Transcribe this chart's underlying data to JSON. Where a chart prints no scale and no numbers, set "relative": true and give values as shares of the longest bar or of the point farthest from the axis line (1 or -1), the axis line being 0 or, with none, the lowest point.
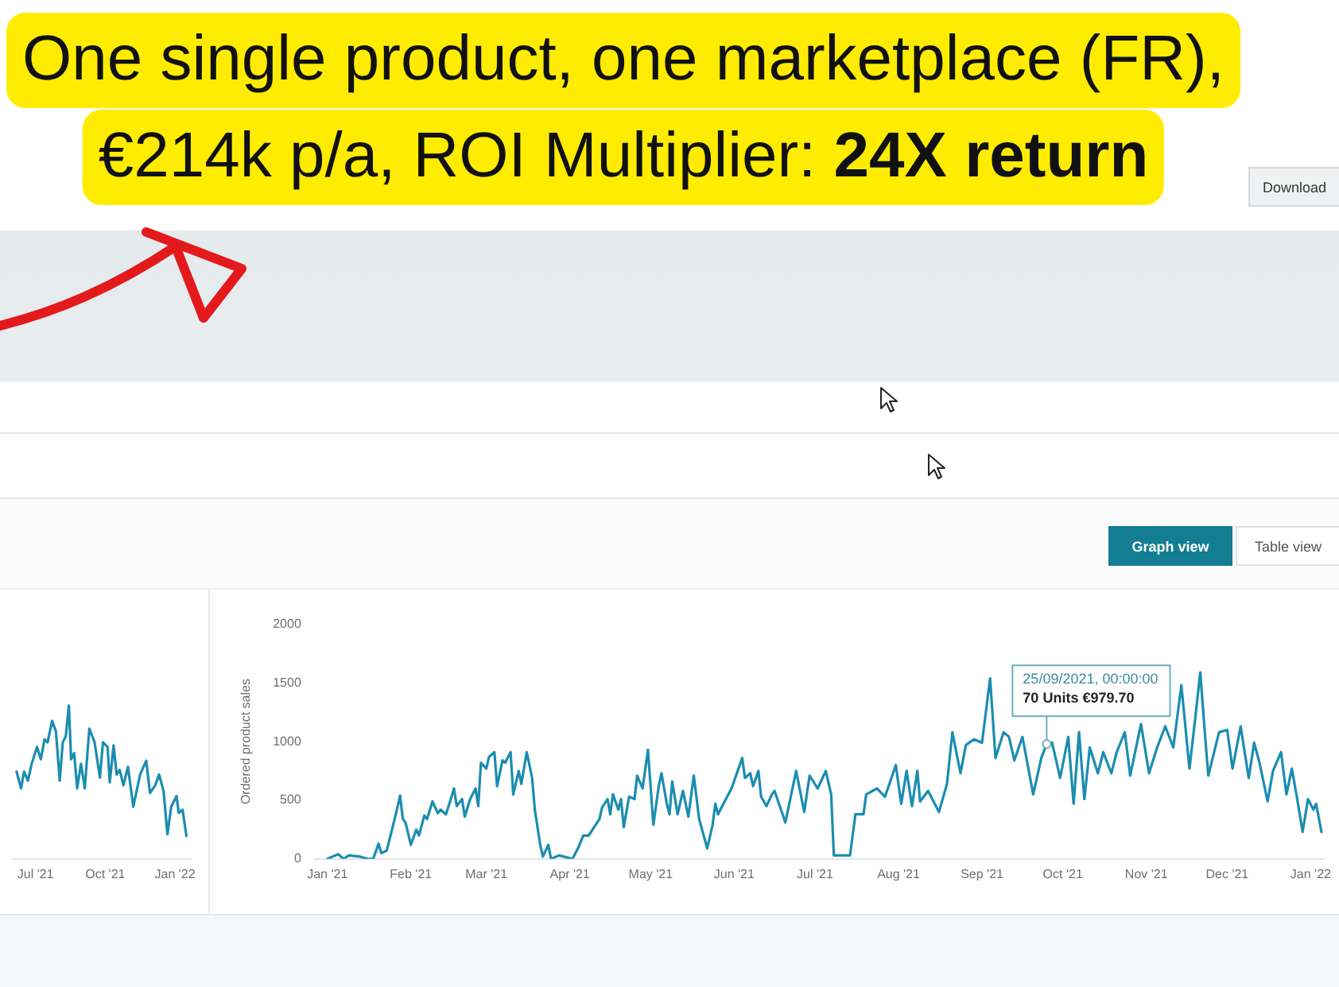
{
  "chart_data": [
    {
      "type": "line",
      "relative": true,
      "color": "#1b8db0",
      "marker": "none",
      "legend": false,
      "grid": false,
      "x": [
        "2021-06-06",
        "2021-06-12",
        "2021-06-16",
        "2021-06-21",
        "2021-06-26",
        "2021-07-03",
        "2021-07-08",
        "2021-07-13",
        "2021-07-17",
        "2021-07-23",
        "2021-07-28",
        "2021-08-02",
        "2021-08-06",
        "2021-08-10",
        "2021-08-14",
        "2021-08-17",
        "2021-08-21",
        "2021-08-25",
        "2021-08-30",
        "2021-09-04",
        "2021-09-10",
        "2021-09-17",
        "2021-09-24",
        "2021-09-28",
        "2021-10-04",
        "2021-10-07",
        "2021-10-12",
        "2021-10-16",
        "2021-10-20",
        "2021-10-25",
        "2021-10-31",
        "2021-11-07",
        "2021-11-16",
        "2021-11-24",
        "2021-11-29",
        "2021-12-06",
        "2021-12-11",
        "2021-12-17",
        "2021-12-22",
        "2021-12-27",
        "2022-01-03",
        "2022-01-06",
        "2022-01-11",
        "2022-01-16"
      ],
      "values": [
        0.57,
        0.46,
        0.57,
        0.51,
        0.62,
        0.73,
        0.65,
        0.78,
        0.76,
        0.9,
        0.83,
        0.51,
        0.76,
        0.8,
        1,
        0.65,
        0.69,
        0.46,
        0.62,
        0.46,
        0.85,
        0.76,
        0.53,
        0.76,
        0.73,
        0.5,
        0.74,
        0.55,
        0.58,
        0.48,
        0.6,
        0.34,
        0.55,
        0.64,
        0.43,
        0.48,
        0.55,
        0.44,
        0.16,
        0.34,
        0.41,
        0.3,
        0.32,
        0.15
      ],
      "xlim": [
        "2021-06-01",
        "2022-01-22"
      ],
      "xticks": [
        {
          "value": "2021-07",
          "label": "Jul '21"
        },
        {
          "value": "2021-10",
          "label": "Oct '21"
        },
        {
          "value": "2022-01",
          "label": "Jan '22"
        }
      ]
    },
    {
      "type": "line",
      "title": "One single product, one marketplace (FR), €214k p/a, ROI Multiplier: 24X return",
      "ylabel": "Ordered product sales",
      "color": "#1b8db0",
      "marker": "none",
      "legend": false,
      "grid": false,
      "x": [
        "2021-01-01",
        "2021-01-05",
        "2021-01-07",
        "2021-01-09",
        "2021-01-13",
        "2021-01-16",
        "2021-01-18",
        "2021-01-20",
        "2021-01-21",
        "2021-01-23",
        "2021-01-25",
        "2021-01-27",
        "2021-01-28",
        "2021-01-29",
        "2021-01-30",
        "2021-02-01",
        "2021-02-03",
        "2021-02-04",
        "2021-02-06",
        "2021-02-07",
        "2021-02-09",
        "2021-02-11",
        "2021-02-12",
        "2021-02-14",
        "2021-02-15",
        "2021-02-17",
        "2021-02-18",
        "2021-02-20",
        "2021-02-21",
        "2021-02-23",
        "2021-02-25",
        "2021-02-26",
        "2021-02-27",
        "2021-03-01",
        "2021-03-02",
        "2021-03-04",
        "2021-03-05",
        "2021-03-07",
        "2021-03-08",
        "2021-03-10",
        "2021-03-11",
        "2021-03-13",
        "2021-03-14",
        "2021-03-16",
        "2021-03-18",
        "2021-03-19",
        "2021-03-21",
        "2021-03-22",
        "2021-03-24",
        "2021-03-25",
        "2021-03-28",
        "2021-04-02",
        "2021-04-04",
        "2021-04-06",
        "2021-04-08",
        "2021-04-10",
        "2021-04-12",
        "2021-04-13",
        "2021-04-15",
        "2021-04-16",
        "2021-04-17",
        "2021-04-19",
        "2021-04-20",
        "2021-04-21",
        "2021-04-23",
        "2021-04-25",
        "2021-04-26",
        "2021-04-28",
        "2021-04-30",
        "2021-05-02",
        "2021-05-04",
        "2021-05-05",
        "2021-05-07",
        "2021-05-08",
        "2021-05-09",
        "2021-05-11",
        "2021-05-13",
        "2021-05-15",
        "2021-05-17",
        "2021-05-19",
        "2021-05-22",
        "2021-05-24",
        "2021-05-25",
        "2021-05-26",
        "2021-05-28",
        "2021-05-31",
        "2021-06-04",
        "2021-06-05",
        "2021-06-07",
        "2021-06-08",
        "2021-06-10",
        "2021-06-11",
        "2021-06-13",
        "2021-06-15",
        "2021-06-16",
        "2021-06-20",
        "2021-06-24",
        "2021-06-27",
        "2021-06-29",
        "2021-07-02",
        "2021-07-05",
        "2021-07-07",
        "2021-07-08",
        "2021-07-14",
        "2021-07-16",
        "2021-07-19",
        "2021-07-20",
        "2021-07-24",
        "2021-07-27",
        "2021-07-31",
        "2021-08-02",
        "2021-08-04",
        "2021-08-06",
        "2021-08-08",
        "2021-08-09",
        "2021-08-12",
        "2021-08-16",
        "2021-08-19",
        "2021-08-21",
        "2021-08-24",
        "2021-08-26",
        "2021-08-29",
        "2021-09-01",
        "2021-09-04",
        "2021-09-06",
        "2021-09-09",
        "2021-09-11",
        "2021-09-13",
        "2021-09-16",
        "2021-09-20",
        "2021-09-23",
        "2021-09-25",
        "2021-09-27",
        "2021-09-30",
        "2021-10-03",
        "2021-10-05",
        "2021-10-07",
        "2021-10-09",
        "2021-10-11",
        "2021-10-14",
        "2021-10-16",
        "2021-10-19",
        "2021-10-21",
        "2021-10-24",
        "2021-10-26",
        "2021-10-30",
        "2021-11-02",
        "2021-11-05",
        "2021-11-08",
        "2021-11-11",
        "2021-11-14",
        "2021-11-17",
        "2021-11-19",
        "2021-11-21",
        "2021-11-23",
        "2021-11-24",
        "2021-11-28",
        "2021-12-01",
        "2021-12-03",
        "2021-12-06",
        "2021-12-09",
        "2021-12-11",
        "2021-12-13",
        "2021-12-16",
        "2021-12-18",
        "2021-12-21",
        "2021-12-23",
        "2021-12-25",
        "2021-12-27",
        "2021-12-29",
        "2021-12-31",
        "2022-01-02",
        "2022-01-03",
        "2022-01-05"
      ],
      "values": [
        0,
        40,
        0,
        30,
        20,
        0,
        0,
        130,
        50,
        70,
        250,
        440,
        540,
        340,
        310,
        120,
        250,
        200,
        370,
        340,
        490,
        390,
        420,
        380,
        450,
        600,
        450,
        510,
        360,
        510,
        600,
        450,
        820,
        770,
        870,
        910,
        620,
        840,
        820,
        910,
        550,
        750,
        640,
        910,
        690,
        420,
        120,
        20,
        120,
        0,
        30,
        0,
        90,
        200,
        200,
        270,
        340,
        440,
        510,
        380,
        550,
        420,
        510,
        270,
        530,
        510,
        710,
        600,
        930,
        290,
        620,
        730,
        470,
        380,
        660,
        380,
        580,
        360,
        710,
        340,
        90,
        290,
        470,
        380,
        470,
        600,
        860,
        690,
        730,
        620,
        750,
        530,
        450,
        550,
        580,
        310,
        750,
        400,
        710,
        600,
        750,
        550,
        30,
        30,
        380,
        380,
        550,
        600,
        530,
        800,
        470,
        750,
        450,
        750,
        490,
        580,
        400,
        640,
        1080,
        730,
        970,
        1020,
        990,
        1540,
        860,
        1080,
        1040,
        840,
        1040,
        550,
        860,
        980,
        990,
        690,
        1040,
        470,
        1080,
        510,
        950,
        730,
        910,
        730,
        910,
        1080,
        710,
        1150,
        730,
        950,
        1130,
        950,
        1480,
        770,
        1170,
        1590,
        990,
        710,
        1080,
        1100,
        770,
        1130,
        690,
        990,
        820,
        490,
        750,
        910,
        550,
        770,
        510,
        230,
        510,
        420,
        470,
        230
      ],
      "xlim": [
        "2020-12-27",
        "2022-01-06"
      ],
      "xticks": [
        {
          "value": "2021-01",
          "label": "Jan '21"
        },
        {
          "value": "2021-02",
          "label": "Feb '21"
        },
        {
          "value": "2021-03",
          "label": "Mar '21"
        },
        {
          "value": "2021-04",
          "label": "Apr '21"
        },
        {
          "value": "2021-05",
          "label": "May '21"
        },
        {
          "value": "2021-06",
          "label": "Jun '21"
        },
        {
          "value": "2021-07",
          "label": "Jul '21"
        },
        {
          "value": "2021-08",
          "label": "Aug '21"
        },
        {
          "value": "2021-09",
          "label": "Sep '21"
        },
        {
          "value": "2021-10",
          "label": "Oct '21"
        },
        {
          "value": "2021-11",
          "label": "Nov '21"
        },
        {
          "value": "2021-12",
          "label": "Dec '21"
        },
        {
          "value": "2022-01",
          "label": "Jan '22"
        }
      ],
      "ylim": [
        0,
        2000
      ],
      "yticks": [
        0,
        500,
        1000,
        1500,
        2000
      ],
      "annotations": [
        "Download",
        "Graph view",
        "Table view",
        {
          "text": "25/09/2021, 00:00:00\n70 Units €979.70",
          "x": "2021-09-25",
          "y": 979.7
        }
      ]
    }
  ]
}
